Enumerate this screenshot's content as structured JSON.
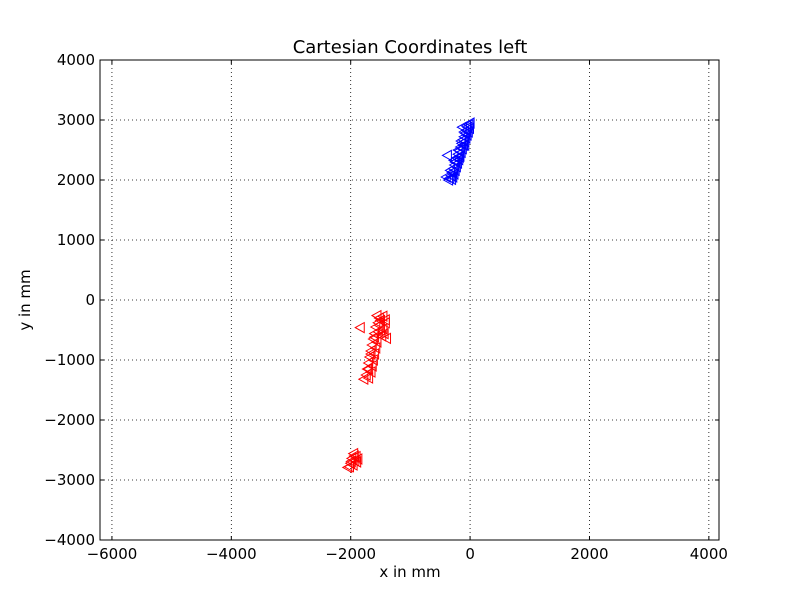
{
  "chart_data": {
    "type": "scatter",
    "title": "Cartesian Coordinates left",
    "xlabel": "x in mm",
    "ylabel": "y in mm",
    "xlim": [
      -6200,
      4170
    ],
    "ylim": [
      -4000,
      4000
    ],
    "xticks": [
      -6000,
      -4000,
      -2000,
      0,
      2000,
      4000
    ],
    "yticks": [
      -4000,
      -3000,
      -2000,
      -1000,
      0,
      1000,
      2000,
      3000,
      4000
    ],
    "xtick_labels": [
      "−6000",
      "−4000",
      "−2000",
      "0",
      "2000",
      "4000"
    ],
    "ytick_labels": [
      "−4000",
      "−3000",
      "−2000",
      "−1000",
      "0",
      "1000",
      "2000",
      "3000",
      "4000"
    ],
    "grid": true,
    "marker": "triangle-left",
    "series": [
      {
        "color": "#0000ff",
        "points": [
          [
            -20,
            2920
          ],
          [
            -40,
            2880
          ],
          [
            -10,
            2860
          ],
          [
            -60,
            2830
          ],
          [
            -30,
            2800
          ],
          [
            -80,
            2780
          ],
          [
            -50,
            2750
          ],
          [
            -100,
            2720
          ],
          [
            -70,
            2700
          ],
          [
            -120,
            2670
          ],
          [
            -90,
            2640
          ],
          [
            -140,
            2610
          ],
          [
            -110,
            2580
          ],
          [
            -160,
            2550
          ],
          [
            -130,
            2520
          ],
          [
            -180,
            2490
          ],
          [
            -150,
            2460
          ],
          [
            -200,
            2430
          ],
          [
            -170,
            2400
          ],
          [
            -220,
            2370
          ],
          [
            -190,
            2340
          ],
          [
            -240,
            2310
          ],
          [
            -210,
            2280
          ],
          [
            -260,
            2250
          ],
          [
            -230,
            2220
          ],
          [
            -280,
            2190
          ],
          [
            -250,
            2160
          ],
          [
            -300,
            2130
          ],
          [
            -270,
            2100
          ],
          [
            -320,
            2070
          ],
          [
            -290,
            2050
          ],
          [
            -340,
            2030
          ],
          [
            -360,
            2000
          ],
          [
            -310,
            2010
          ],
          [
            -250,
            2300
          ],
          [
            -200,
            2500
          ],
          [
            -150,
            2650
          ],
          [
            -100,
            2800
          ],
          [
            -60,
            2900
          ],
          [
            -380,
            2410
          ],
          [
            -400,
            2050
          ],
          [
            -130,
            2880
          ],
          [
            0,
            2950
          ],
          [
            -90,
            2580
          ],
          [
            -180,
            2380
          ],
          [
            -330,
            2160
          ],
          [
            -270,
            2330
          ]
        ]
      },
      {
        "color": "#ff0000",
        "points": [
          [
            -1460,
            -270
          ],
          [
            -1500,
            -340
          ],
          [
            -1420,
            -380
          ],
          [
            -1520,
            -420
          ],
          [
            -1580,
            -450
          ],
          [
            -1460,
            -480
          ],
          [
            -1540,
            -530
          ],
          [
            -1600,
            -560
          ],
          [
            -1480,
            -600
          ],
          [
            -1620,
            -650
          ],
          [
            -1560,
            -700
          ],
          [
            -1640,
            -750
          ],
          [
            -1580,
            -800
          ],
          [
            -1660,
            -850
          ],
          [
            -1600,
            -900
          ],
          [
            -1680,
            -950
          ],
          [
            -1620,
            -1000
          ],
          [
            -1700,
            -1050
          ],
          [
            -1640,
            -1100
          ],
          [
            -1720,
            -1150
          ],
          [
            -1660,
            -1200
          ],
          [
            -1740,
            -1250
          ],
          [
            -1700,
            -1300
          ],
          [
            -1440,
            -560
          ],
          [
            -1400,
            -640
          ],
          [
            -1840,
            -460
          ],
          [
            -1420,
            -330
          ],
          [
            -1780,
            -1320
          ],
          [
            -1500,
            -500
          ],
          [
            -1540,
            -380
          ],
          [
            -1600,
            -620
          ],
          [
            -1660,
            -900
          ],
          [
            -1700,
            -1150
          ],
          [
            -1520,
            -300
          ],
          [
            -1560,
            -260
          ],
          [
            -1950,
            -2560
          ],
          [
            -1910,
            -2610
          ],
          [
            -1980,
            -2640
          ],
          [
            -1930,
            -2680
          ],
          [
            -2000,
            -2720
          ],
          [
            -1960,
            -2750
          ],
          [
            -2020,
            -2780
          ],
          [
            -1900,
            -2700
          ],
          [
            -1880,
            -2650
          ],
          [
            -2050,
            -2790
          ],
          [
            -1940,
            -2600
          ],
          [
            -1990,
            -2690
          ]
        ]
      }
    ]
  }
}
